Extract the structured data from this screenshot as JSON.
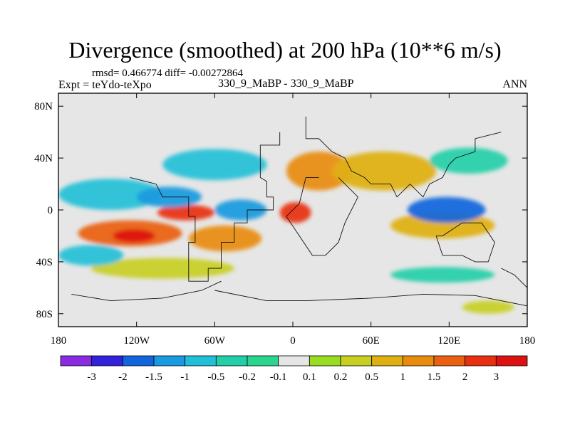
{
  "chart_data": {
    "type": "heatmap",
    "title": "Divergence (smoothed) at 200 hPa (10**6 m/s)",
    "stats_line": "rmsd= 0.466774 diff= -0.00272864",
    "experiment": "Expt = teYdo-teXpo",
    "cases": "330_9_MaBP - 330_9_MaBP",
    "season": "ANN",
    "xlim": [
      -180,
      180
    ],
    "ylim": [
      -90,
      90
    ],
    "xticks": [
      {
        "value": -180,
        "label": "180"
      },
      {
        "value": -120,
        "label": "120W"
      },
      {
        "value": -60,
        "label": "60W"
      },
      {
        "value": 0,
        "label": "0"
      },
      {
        "value": 60,
        "label": "60E"
      },
      {
        "value": 120,
        "label": "120E"
      },
      {
        "value": 180,
        "label": "180"
      }
    ],
    "yticks": [
      {
        "value": 80,
        "label": "80N"
      },
      {
        "value": 40,
        "label": "40N"
      },
      {
        "value": 0,
        "label": "0"
      },
      {
        "value": -40,
        "label": "40S"
      },
      {
        "value": -80,
        "label": "80S"
      }
    ],
    "colorbar": {
      "levels": [
        {
          "value": -3,
          "label": "-3"
        },
        {
          "value": -2,
          "label": "-2"
        },
        {
          "value": -1.5,
          "label": "-1.5"
        },
        {
          "value": -1,
          "label": "-1"
        },
        {
          "value": -0.5,
          "label": "-0.5"
        },
        {
          "value": -0.2,
          "label": "-0.2"
        },
        {
          "value": -0.1,
          "label": "-0.1"
        },
        {
          "value": 0.1,
          "label": "0.1"
        },
        {
          "value": 0.2,
          "label": "0.2"
        },
        {
          "value": 0.5,
          "label": "0.5"
        },
        {
          "value": 1,
          "label": "1"
        },
        {
          "value": 1.5,
          "label": "1.5"
        },
        {
          "value": 2,
          "label": "2"
        },
        {
          "value": 3,
          "label": "3"
        }
      ],
      "colors": [
        "#8a2be2",
        "#3322dd",
        "#1166dd",
        "#1a9ae0",
        "#22c0d8",
        "#22cfa8",
        "#2ad590",
        "#e6e6e6",
        "#99dd22",
        "#c8cf22",
        "#dfb012",
        "#e88c10",
        "#ea6010",
        "#e83010",
        "#dd1111"
      ]
    },
    "field_blobs": [
      {
        "lon": -125,
        "lat": -18,
        "rlon": 40,
        "rlat": 10,
        "value": 1.8
      },
      {
        "lon": -122,
        "lat": -20,
        "rlon": 16,
        "rlat": 5,
        "value": 3
      },
      {
        "lon": -82,
        "lat": -2,
        "rlon": 22,
        "rlat": 6,
        "value": 2
      },
      {
        "lon": -52,
        "lat": -22,
        "rlon": 28,
        "rlat": 10,
        "value": 1.2
      },
      {
        "lon": 2,
        "lat": -2,
        "rlon": 12,
        "rlat": 8,
        "value": 2.5
      },
      {
        "lon": 20,
        "lat": 30,
        "rlon": 25,
        "rlat": 15,
        "value": 1
      },
      {
        "lon": 70,
        "lat": 30,
        "rlon": 40,
        "rlat": 15,
        "value": 0.8
      },
      {
        "lon": 115,
        "lat": -12,
        "rlon": 40,
        "rlat": 10,
        "value": 0.6
      },
      {
        "lon": -100,
        "lat": -45,
        "rlon": 55,
        "rlat": 8,
        "value": 0.4
      },
      {
        "lon": -140,
        "lat": 12,
        "rlon": 40,
        "rlat": 12,
        "value": -1
      },
      {
        "lon": -95,
        "lat": 10,
        "rlon": 25,
        "rlat": 8,
        "value": -1.2
      },
      {
        "lon": -40,
        "lat": 0,
        "rlon": 20,
        "rlat": 8,
        "value": -1.5
      },
      {
        "lon": -60,
        "lat": 35,
        "rlon": 40,
        "rlat": 12,
        "value": -0.7
      },
      {
        "lon": 118,
        "lat": 0,
        "rlon": 30,
        "rlat": 10,
        "value": -1.8
      },
      {
        "lon": -155,
        "lat": -35,
        "rlon": 25,
        "rlat": 8,
        "value": -0.6
      },
      {
        "lon": 135,
        "lat": 38,
        "rlon": 30,
        "rlat": 10,
        "value": -0.5
      },
      {
        "lon": 115,
        "lat": -50,
        "rlon": 40,
        "rlat": 6,
        "value": -0.3
      },
      {
        "lon": 150,
        "lat": -75,
        "rlon": 20,
        "rlat": 5,
        "value": 0.3
      }
    ],
    "coastlines": [
      [
        [
          -10,
          60
        ],
        [
          -10,
          50
        ],
        [
          -25,
          50
        ],
        [
          -25,
          25
        ],
        [
          -20,
          22
        ],
        [
          -20,
          10
        ],
        [
          -15,
          10
        ],
        [
          -15,
          0
        ],
        [
          -35,
          0
        ],
        [
          -35,
          -10
        ],
        [
          -45,
          -10
        ],
        [
          -45,
          -25
        ],
        [
          -55,
          -25
        ],
        [
          -55,
          -45
        ],
        [
          -65,
          -45
        ],
        [
          -65,
          -55
        ],
        [
          -80,
          -55
        ],
        [
          -80,
          -25
        ],
        [
          -75,
          -25
        ],
        [
          -75,
          -5
        ],
        [
          -80,
          -5
        ],
        [
          -80,
          10
        ],
        [
          -100,
          10
        ],
        [
          -105,
          20
        ],
        [
          -125,
          25
        ]
      ],
      [
        [
          20,
          25
        ],
        [
          10,
          25
        ],
        [
          5,
          5
        ],
        [
          -5,
          -5
        ],
        [
          5,
          -20
        ],
        [
          15,
          -35
        ],
        [
          25,
          -35
        ],
        [
          35,
          -25
        ],
        [
          40,
          -10
        ],
        [
          50,
          10
        ],
        [
          45,
          15
        ],
        [
          35,
          25
        ]
      ],
      [
        [
          10,
          72
        ],
        [
          10,
          55
        ],
        [
          20,
          55
        ],
        [
          30,
          45
        ],
        [
          40,
          40
        ],
        [
          45,
          30
        ],
        [
          55,
          25
        ],
        [
          60,
          20
        ],
        [
          75,
          20
        ],
        [
          80,
          10
        ],
        [
          90,
          20
        ],
        [
          100,
          10
        ],
        [
          105,
          20
        ],
        [
          115,
          25
        ],
        [
          120,
          35
        ],
        [
          125,
          40
        ],
        [
          140,
          45
        ],
        [
          140,
          55
        ],
        [
          160,
          60
        ]
      ],
      [
        [
          110,
          -20
        ],
        [
          115,
          -35
        ],
        [
          130,
          -35
        ],
        [
          140,
          -40
        ],
        [
          150,
          -40
        ],
        [
          155,
          -25
        ],
        [
          145,
          -10
        ],
        [
          130,
          -10
        ],
        [
          115,
          -20
        ],
        [
          110,
          -20
        ]
      ],
      [
        [
          160,
          -45
        ],
        [
          170,
          -50
        ],
        [
          180,
          -60
        ]
      ],
      [
        [
          -170,
          -65
        ],
        [
          -140,
          -70
        ],
        [
          -100,
          -68
        ],
        [
          -70,
          -62
        ],
        [
          -55,
          -55
        ]
      ],
      [
        [
          -60,
          -62
        ],
        [
          -20,
          -70
        ],
        [
          10,
          -70
        ],
        [
          60,
          -68
        ],
        [
          100,
          -65
        ],
        [
          140,
          -66
        ],
        [
          170,
          -72
        ],
        [
          180,
          -74
        ]
      ]
    ]
  }
}
